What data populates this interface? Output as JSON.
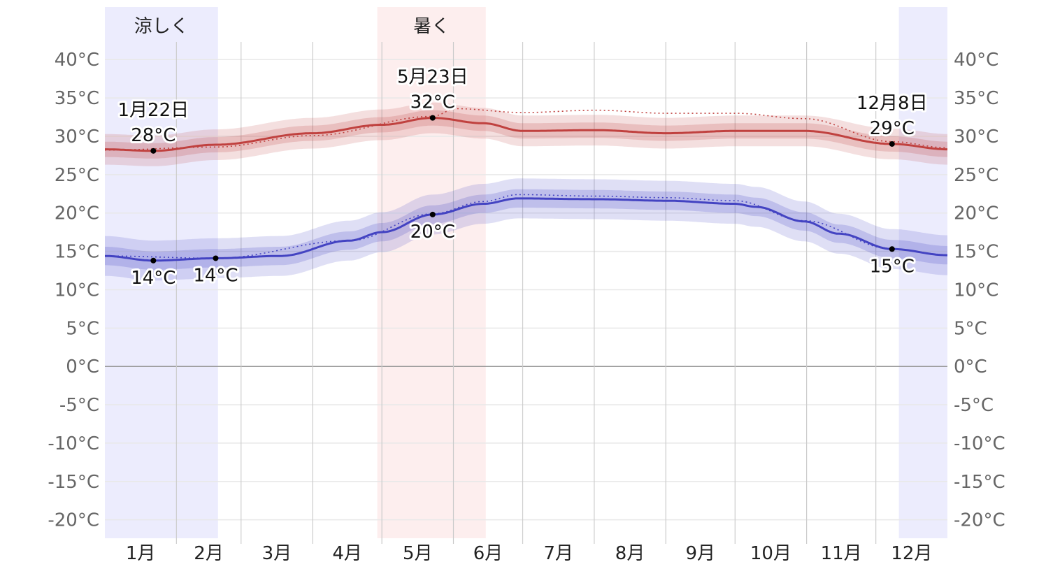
{
  "chart_data": {
    "type": "line",
    "title": "",
    "xlabel": "",
    "ylabel": "",
    "ylim": [
      -22.4,
      42.3
    ],
    "yticks": [
      "40°C",
      "35°C",
      "30°C",
      "25°C",
      "20°C",
      "15°C",
      "10°C",
      "5°C",
      "0°C",
      "-5°C",
      "-10°C",
      "-15°C",
      "-20°C"
    ],
    "ytick_values": [
      40,
      35,
      30,
      25,
      20,
      15,
      10,
      5,
      0,
      -5,
      -10,
      -15,
      -20
    ],
    "months": [
      "1月",
      "2月",
      "3月",
      "4月",
      "5月",
      "6月",
      "7月",
      "8月",
      "9月",
      "10月",
      "11月",
      "12月"
    ],
    "month_start_days": [
      0,
      31,
      59,
      90,
      120,
      151,
      181,
      212,
      243,
      273,
      304,
      334
    ],
    "days_in_year": 365,
    "grid": true,
    "seasons": [
      {
        "label": "涼しく",
        "color": "#ececfd",
        "ranges": [
          [
            0,
            49
          ],
          [
            344,
            365
          ]
        ]
      },
      {
        "label": "暑く",
        "color": "#fdeeee",
        "ranges": [
          [
            118,
            165
          ]
        ]
      }
    ],
    "series": [
      {
        "name": "high",
        "color": "#c0413f",
        "band_color": "#c0413f",
        "days": [
          0,
          21,
          48,
          90,
          120,
          142,
          164,
          181,
          213,
          243,
          273,
          303,
          341,
          365
        ],
        "values": [
          28.3,
          28.1,
          28.9,
          30.4,
          31.5,
          32.4,
          31.7,
          30.7,
          30.8,
          30.4,
          30.7,
          30.7,
          29.0,
          28.3
        ],
        "band_inner": 1.0,
        "band_outer": 2.0,
        "dotted_days": [
          0,
          48,
          90,
          142,
          152,
          181,
          213,
          243,
          273,
          303,
          341,
          365
        ],
        "dotted_values": [
          28.2,
          28.6,
          30.1,
          32.6,
          33.6,
          33.1,
          33.4,
          33.0,
          33.0,
          32.3,
          29.3,
          28.5
        ]
      },
      {
        "name": "low",
        "color": "#4343c2",
        "band_color": "#4343c2",
        "days": [
          0,
          21,
          48,
          76,
          106,
          120,
          142,
          164,
          179,
          213,
          243,
          273,
          282,
          303,
          318,
          341,
          365
        ],
        "values": [
          14.4,
          13.8,
          14.1,
          14.4,
          16.4,
          17.5,
          19.8,
          21.2,
          21.9,
          21.8,
          21.6,
          21.2,
          20.8,
          18.9,
          17.3,
          15.3,
          14.5
        ],
        "band_inner": 1.2,
        "band_outer": 2.6,
        "dotted_days": [
          0,
          48,
          106,
          142,
          164,
          179,
          213,
          243,
          273,
          303,
          341,
          365
        ],
        "dotted_values": [
          14.4,
          14.1,
          16.4,
          19.9,
          21.5,
          22.4,
          22.2,
          22.0,
          21.6,
          19.0,
          15.3,
          14.5
        ]
      }
    ],
    "annotations": [
      {
        "day": 21,
        "value": 28.1,
        "date": "1月22日",
        "temp": "28°C",
        "pos": "above"
      },
      {
        "day": 142,
        "value": 32.4,
        "date": "5月23日",
        "temp": "32°C",
        "pos": "above"
      },
      {
        "day": 341,
        "value": 29.0,
        "date": "12月8日",
        "temp": "29°C",
        "pos": "above"
      },
      {
        "day": 21,
        "value": 13.8,
        "date": "",
        "temp": "14°C",
        "pos": "below"
      },
      {
        "day": 48,
        "value": 14.1,
        "date": "",
        "temp": "14°C",
        "pos": "below"
      },
      {
        "day": 142,
        "value": 19.8,
        "date": "",
        "temp": "20°C",
        "pos": "below"
      },
      {
        "day": 341,
        "value": 15.3,
        "date": "",
        "temp": "15°C",
        "pos": "below"
      }
    ]
  }
}
